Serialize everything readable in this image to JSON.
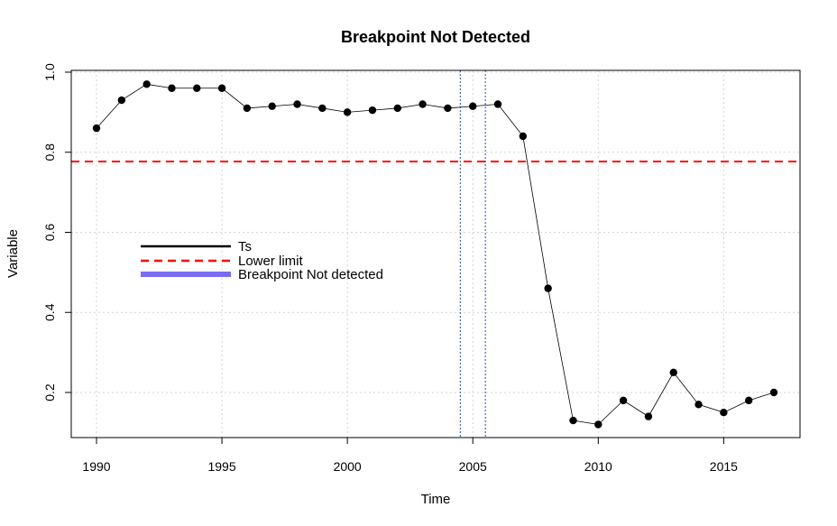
{
  "chart_data": {
    "type": "line",
    "title": "Breakpoint Not Detected",
    "xlabel": "Time",
    "ylabel": "Variable",
    "xlim": [
      1989,
      2018
    ],
    "ylim": [
      0.09,
      1.0
    ],
    "x_ticks": [
      1990,
      1995,
      2000,
      2005,
      2010,
      2015
    ],
    "y_ticks": [
      0.2,
      0.4,
      0.6,
      0.8,
      1.0
    ],
    "x_tick_labels": [
      "1990",
      "1995",
      "2000",
      "2005",
      "2010",
      "2015"
    ],
    "y_tick_labels": [
      "0.2",
      "0.4",
      "0.6",
      "0.8",
      "1.0"
    ],
    "grid": true,
    "legend_position": "left",
    "series": [
      {
        "name": "Ts",
        "color": "#000000",
        "x": [
          1990,
          1991,
          1992,
          1993,
          1994,
          1995,
          1996,
          1997,
          1998,
          1999,
          2000,
          2001,
          2002,
          2003,
          2004,
          2005,
          2006,
          2007,
          2008,
          2009,
          2010,
          2011,
          2012,
          2013,
          2014,
          2015,
          2016,
          2017
        ],
        "y": [
          0.86,
          0.93,
          0.97,
          0.96,
          0.96,
          0.96,
          0.91,
          0.915,
          0.92,
          0.91,
          0.9,
          0.905,
          0.91,
          0.92,
          0.91,
          0.915,
          0.92,
          0.84,
          0.46,
          0.13,
          0.12,
          0.18,
          0.14,
          0.25,
          0.17,
          0.15,
          0.18,
          0.2
        ]
      }
    ],
    "lower_limit": {
      "name": "Lower limit",
      "value": 0.777,
      "color": "#ff0000"
    },
    "vertical_lines": {
      "x": [
        2004.5,
        2005.5
      ],
      "color": "#1f4e9e"
    },
    "legend": [
      {
        "label": "Ts",
        "color": "#000000",
        "style": "solid"
      },
      {
        "label": "Lower limit",
        "color": "#ff0000",
        "style": "dashed"
      },
      {
        "label": "Breakpoint Not detected",
        "color": "#7b6cf6",
        "style": "thick"
      }
    ]
  }
}
